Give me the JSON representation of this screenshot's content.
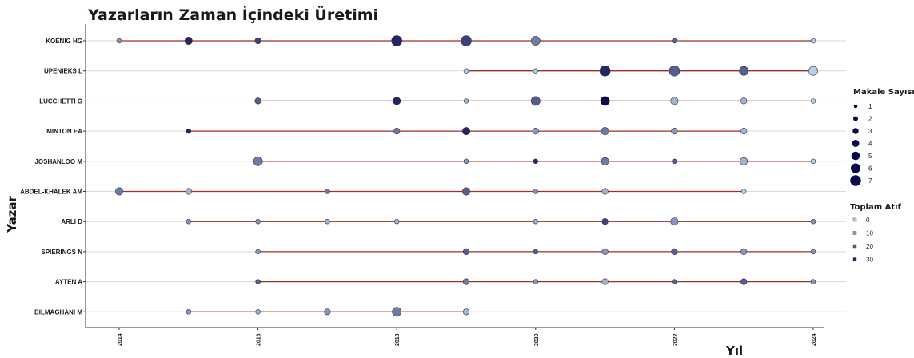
{
  "chart_data": {
    "type": "scatter",
    "title": "Yazarların Zaman İçindeki Üretimi",
    "xlabel": "Yıl",
    "ylabel": "Yazar",
    "xlim": [
      2014,
      2024
    ],
    "x_ticks": [
      "2014",
      "2016",
      "2018",
      "2020",
      "2022",
      "2024"
    ],
    "authors": [
      "KOENIG HG",
      "UPENIEKS L",
      "LUCCHETTI G",
      "MINTON EA",
      "JOSHANLOO M",
      "ABDEL-KHALEK AM",
      "ARLI D",
      "SPIERINGS N",
      "AYTEN A",
      "DILMAGHANI M"
    ],
    "series": [
      {
        "author": "KOENIG HG",
        "points": [
          {
            "year": 2014,
            "articles": 1,
            "citations": 10
          },
          {
            "year": 2015,
            "articles": 3,
            "citations": 30
          },
          {
            "year": 2016,
            "articles": 2,
            "citations": 25
          },
          {
            "year": 2018,
            "articles": 5,
            "citations": 30
          },
          {
            "year": 2019,
            "articles": 5,
            "citations": 25
          },
          {
            "year": 2020,
            "articles": 4,
            "citations": 15
          },
          {
            "year": 2022,
            "articles": 1,
            "citations": 20
          },
          {
            "year": 2024,
            "articles": 1,
            "citations": 0
          }
        ]
      },
      {
        "author": "UPENIEKS L",
        "points": [
          {
            "year": 2019,
            "articles": 1,
            "citations": 0
          },
          {
            "year": 2020,
            "articles": 1,
            "citations": 0
          },
          {
            "year": 2021,
            "articles": 5,
            "citations": 30
          },
          {
            "year": 2022,
            "articles": 5,
            "citations": 20
          },
          {
            "year": 2023,
            "articles": 4,
            "citations": 20
          },
          {
            "year": 2024,
            "articles": 4,
            "citations": 0
          }
        ]
      },
      {
        "author": "LUCCHETTI G",
        "points": [
          {
            "year": 2016,
            "articles": 2,
            "citations": 20
          },
          {
            "year": 2018,
            "articles": 3,
            "citations": 30
          },
          {
            "year": 2019,
            "articles": 1,
            "citations": 5
          },
          {
            "year": 2020,
            "articles": 4,
            "citations": 20
          },
          {
            "year": 2021,
            "articles": 4,
            "citations": 35
          },
          {
            "year": 2022,
            "articles": 3,
            "citations": 5
          },
          {
            "year": 2023,
            "articles": 2,
            "citations": 5
          },
          {
            "year": 2024,
            "articles": 1,
            "citations": 0
          }
        ]
      },
      {
        "author": "MINTON EA",
        "points": [
          {
            "year": 2015,
            "articles": 1,
            "citations": 30
          },
          {
            "year": 2018,
            "articles": 2,
            "citations": 15
          },
          {
            "year": 2019,
            "articles": 3,
            "citations": 30
          },
          {
            "year": 2020,
            "articles": 2,
            "citations": 10
          },
          {
            "year": 2021,
            "articles": 3,
            "citations": 15
          },
          {
            "year": 2022,
            "articles": 2,
            "citations": 10
          },
          {
            "year": 2023,
            "articles": 2,
            "citations": 5
          }
        ]
      },
      {
        "author": "JOSHANLOO M",
        "points": [
          {
            "year": 2016,
            "articles": 4,
            "citations": 15
          },
          {
            "year": 2019,
            "articles": 1,
            "citations": 10
          },
          {
            "year": 2020,
            "articles": 1,
            "citations": 30
          },
          {
            "year": 2021,
            "articles": 3,
            "citations": 15
          },
          {
            "year": 2022,
            "articles": 1,
            "citations": 20
          },
          {
            "year": 2023,
            "articles": 3,
            "citations": 5
          },
          {
            "year": 2024,
            "articles": 1,
            "citations": 0
          }
        ]
      },
      {
        "author": "ABDEL-KHALEK AM",
        "points": [
          {
            "year": 2014,
            "articles": 3,
            "citations": 15
          },
          {
            "year": 2015,
            "articles": 2,
            "citations": 5
          },
          {
            "year": 2017,
            "articles": 1,
            "citations": 15
          },
          {
            "year": 2019,
            "articles": 3,
            "citations": 20
          },
          {
            "year": 2020,
            "articles": 1,
            "citations": 10
          },
          {
            "year": 2021,
            "articles": 2,
            "citations": 5
          },
          {
            "year": 2023,
            "articles": 1,
            "citations": 0
          }
        ]
      },
      {
        "author": "ARLI D",
        "points": [
          {
            "year": 2015,
            "articles": 1,
            "citations": 10
          },
          {
            "year": 2016,
            "articles": 1,
            "citations": 10
          },
          {
            "year": 2017,
            "articles": 1,
            "citations": 5
          },
          {
            "year": 2018,
            "articles": 1,
            "citations": 5
          },
          {
            "year": 2020,
            "articles": 1,
            "citations": 5
          },
          {
            "year": 2021,
            "articles": 2,
            "citations": 25
          },
          {
            "year": 2022,
            "articles": 3,
            "citations": 10
          },
          {
            "year": 2024,
            "articles": 1,
            "citations": 10
          }
        ]
      },
      {
        "author": "SPIERINGS N",
        "points": [
          {
            "year": 2016,
            "articles": 1,
            "citations": 10
          },
          {
            "year": 2019,
            "articles": 2,
            "citations": 20
          },
          {
            "year": 2020,
            "articles": 1,
            "citations": 20
          },
          {
            "year": 2021,
            "articles": 2,
            "citations": 10
          },
          {
            "year": 2022,
            "articles": 2,
            "citations": 20
          },
          {
            "year": 2023,
            "articles": 2,
            "citations": 10
          },
          {
            "year": 2024,
            "articles": 1,
            "citations": 10
          }
        ]
      },
      {
        "author": "AYTEN A",
        "points": [
          {
            "year": 2016,
            "articles": 1,
            "citations": 20
          },
          {
            "year": 2019,
            "articles": 2,
            "citations": 15
          },
          {
            "year": 2020,
            "articles": 1,
            "citations": 10
          },
          {
            "year": 2021,
            "articles": 2,
            "citations": 5
          },
          {
            "year": 2022,
            "articles": 1,
            "citations": 20
          },
          {
            "year": 2023,
            "articles": 2,
            "citations": 20
          },
          {
            "year": 2024,
            "articles": 1,
            "citations": 10
          }
        ]
      },
      {
        "author": "DILMAGHANI M",
        "points": [
          {
            "year": 2015,
            "articles": 1,
            "citations": 10
          },
          {
            "year": 2016,
            "articles": 1,
            "citations": 5
          },
          {
            "year": 2017,
            "articles": 2,
            "citations": 10
          },
          {
            "year": 2018,
            "articles": 4,
            "citations": 15
          },
          {
            "year": 2019,
            "articles": 2,
            "citations": 5
          }
        ]
      }
    ],
    "legend_size": {
      "title": "Makale Sayısı",
      "labels": [
        "1",
        "2",
        "3",
        "4",
        "5",
        "6",
        "7"
      ],
      "placement": "right"
    },
    "legend_color": {
      "title": "Toplam Atıf",
      "labels": [
        "0",
        "10",
        "20",
        "30"
      ],
      "placement": "right"
    },
    "colors": {
      "low_citations": "#b9cfe8",
      "high_citations": "#0a0a4a",
      "line": "#a52a2a",
      "grid": "#d9d9d9"
    },
    "grid": true
  }
}
